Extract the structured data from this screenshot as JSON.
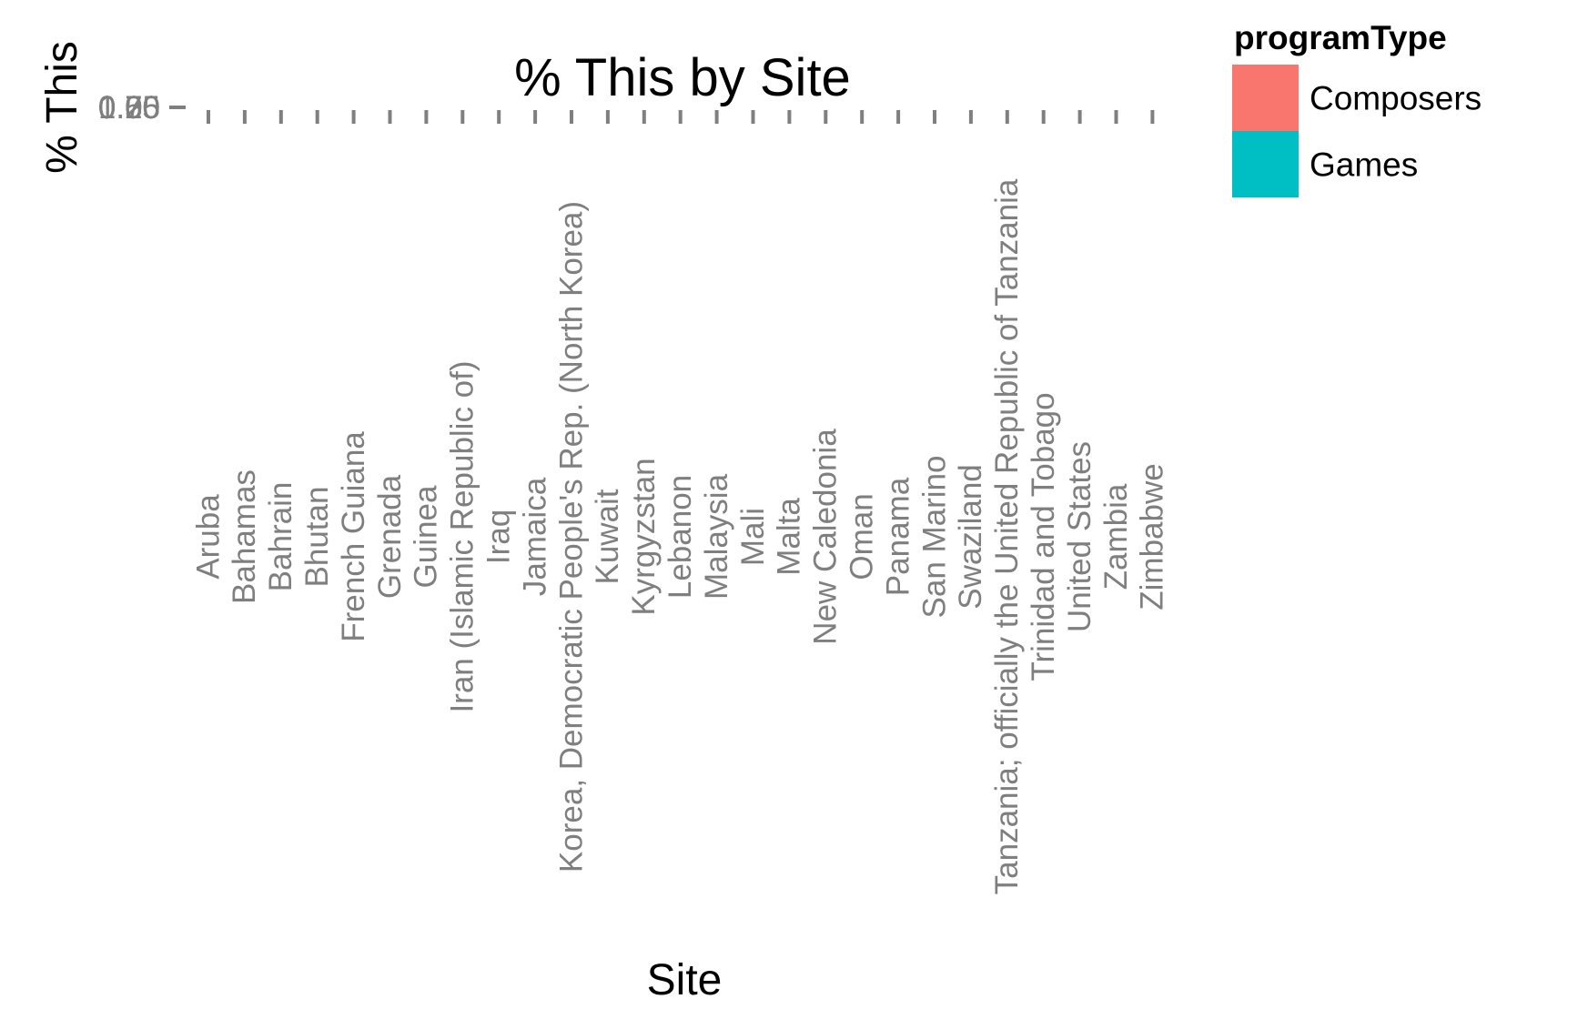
{
  "chart_data": {
    "type": "bar",
    "title": "% This by Site",
    "xlabel": "Site",
    "ylabel": "% This",
    "categories": [
      "Aruba",
      "Bahamas",
      "Bahrain",
      "Bhutan",
      "French Guiana",
      "Grenada",
      "Guinea",
      "Iran (Islamic Republic of)",
      "Iraq",
      "Jamaica",
      "Korea, Democratic People's Rep. (North Korea)",
      "Kuwait",
      "Kyrgyzstan",
      "Lebanon",
      "Malaysia",
      "Mali",
      "Malta",
      "New Caledonia",
      "Oman",
      "Panama",
      "San Marino",
      "Swaziland",
      "Tanzania; officially the United Republic of Tanzania",
      "Trinidad and Tobago",
      "United States",
      "Zambia",
      "Zimbabwe"
    ],
    "y_ticks": [
      "0.00",
      "0.25",
      "0.50",
      "0.75",
      "1.00"
    ],
    "series": [
      {
        "name": "Composers",
        "color": "#F8766D"
      },
      {
        "name": "Games",
        "color": "#00BFC4"
      }
    ],
    "legend": {
      "title": "programType",
      "position": "top-right"
    },
    "grid": false
  }
}
